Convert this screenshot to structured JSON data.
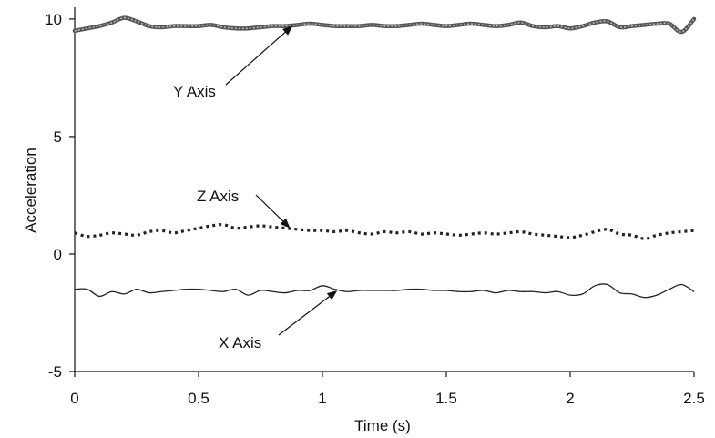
{
  "chart_data": {
    "type": "line",
    "xlabel": "Time (s)",
    "ylabel": "Acceleration",
    "xlim": [
      0,
      2.5
    ],
    "ylim": [
      -5,
      10.5
    ],
    "xticks": [
      0,
      0.5,
      1,
      1.5,
      2,
      2.5
    ],
    "xtick_labels": [
      "0",
      "0.5",
      "1",
      "1.5",
      "2",
      "2.5"
    ],
    "yticks": [
      -5,
      0,
      5,
      10
    ],
    "ytick_labels": [
      "-5",
      "0",
      "5",
      "10"
    ],
    "grid": false,
    "legend": "none",
    "series": [
      {
        "key": "y",
        "style": "thick",
        "color": "#555555",
        "x": [
          0,
          0.05,
          0.1,
          0.15,
          0.2,
          0.25,
          0.3,
          0.35,
          0.4,
          0.45,
          0.5,
          0.55,
          0.6,
          0.65,
          0.7,
          0.75,
          0.8,
          0.85,
          0.9,
          0.95,
          1.0,
          1.05,
          1.1,
          1.15,
          1.2,
          1.25,
          1.3,
          1.35,
          1.4,
          1.45,
          1.5,
          1.55,
          1.6,
          1.65,
          1.7,
          1.75,
          1.8,
          1.85,
          1.9,
          1.95,
          2.0,
          2.05,
          2.1,
          2.15,
          2.2,
          2.25,
          2.3,
          2.35,
          2.4,
          2.45,
          2.5
        ],
        "values": [
          9.5,
          9.6,
          9.7,
          9.85,
          10.05,
          9.9,
          9.7,
          9.65,
          9.7,
          9.7,
          9.7,
          9.75,
          9.65,
          9.6,
          9.6,
          9.65,
          9.7,
          9.7,
          9.75,
          9.8,
          9.75,
          9.7,
          9.7,
          9.7,
          9.75,
          9.7,
          9.7,
          9.75,
          9.8,
          9.75,
          9.7,
          9.75,
          9.8,
          9.75,
          9.7,
          9.75,
          9.85,
          9.7,
          9.65,
          9.7,
          9.6,
          9.7,
          9.85,
          9.9,
          9.65,
          9.7,
          9.75,
          9.8,
          9.8,
          9.45,
          10.0
        ]
      },
      {
        "key": "z",
        "style": "dotted",
        "color": "#222222",
        "x": [
          0,
          0.05,
          0.1,
          0.15,
          0.2,
          0.25,
          0.3,
          0.35,
          0.4,
          0.45,
          0.5,
          0.55,
          0.6,
          0.65,
          0.7,
          0.75,
          0.8,
          0.85,
          0.9,
          0.95,
          1.0,
          1.05,
          1.1,
          1.15,
          1.2,
          1.25,
          1.3,
          1.35,
          1.4,
          1.45,
          1.5,
          1.55,
          1.6,
          1.65,
          1.7,
          1.75,
          1.8,
          1.85,
          1.9,
          1.95,
          2.0,
          2.05,
          2.1,
          2.15,
          2.2,
          2.25,
          2.3,
          2.35,
          2.4,
          2.45,
          2.5
        ],
        "values": [
          0.9,
          0.75,
          0.8,
          0.9,
          0.85,
          0.8,
          0.95,
          1.0,
          0.9,
          1.0,
          1.1,
          1.2,
          1.25,
          1.1,
          1.15,
          1.2,
          1.15,
          1.1,
          1.05,
          1.0,
          1.0,
          0.95,
          1.0,
          0.9,
          0.85,
          0.95,
          0.9,
          0.95,
          0.85,
          0.9,
          0.85,
          0.8,
          0.85,
          0.9,
          0.85,
          0.9,
          0.95,
          0.85,
          0.8,
          0.75,
          0.7,
          0.8,
          0.95,
          1.05,
          0.85,
          0.8,
          0.65,
          0.8,
          0.9,
          0.95,
          1.0
        ]
      },
      {
        "key": "x",
        "style": "thin",
        "color": "#222222",
        "x": [
          0,
          0.05,
          0.1,
          0.15,
          0.2,
          0.25,
          0.3,
          0.35,
          0.4,
          0.45,
          0.5,
          0.55,
          0.6,
          0.65,
          0.7,
          0.75,
          0.8,
          0.85,
          0.9,
          0.95,
          1.0,
          1.05,
          1.1,
          1.15,
          1.2,
          1.25,
          1.3,
          1.35,
          1.4,
          1.45,
          1.5,
          1.55,
          1.6,
          1.65,
          1.7,
          1.75,
          1.8,
          1.85,
          1.9,
          1.95,
          2.0,
          2.05,
          2.1,
          2.15,
          2.2,
          2.25,
          2.3,
          2.35,
          2.4,
          2.45,
          2.5
        ],
        "values": [
          -1.5,
          -1.5,
          -1.8,
          -1.6,
          -1.7,
          -1.5,
          -1.65,
          -1.6,
          -1.55,
          -1.5,
          -1.5,
          -1.55,
          -1.6,
          -1.5,
          -1.75,
          -1.55,
          -1.6,
          -1.65,
          -1.55,
          -1.55,
          -1.35,
          -1.5,
          -1.6,
          -1.55,
          -1.55,
          -1.55,
          -1.55,
          -1.5,
          -1.5,
          -1.55,
          -1.55,
          -1.6,
          -1.6,
          -1.55,
          -1.65,
          -1.55,
          -1.6,
          -1.6,
          -1.65,
          -1.6,
          -1.75,
          -1.7,
          -1.35,
          -1.3,
          -1.65,
          -1.7,
          -1.85,
          -1.75,
          -1.5,
          -1.3,
          -1.6
        ]
      }
    ],
    "annotations": [
      {
        "key": "y_label",
        "text": "Y Axis",
        "target_x": 0.88,
        "target_y": 9.72
      },
      {
        "key": "z_label",
        "text": "Z Axis",
        "target_x": 0.87,
        "target_y": 1.1
      },
      {
        "key": "x_label",
        "text": "X Axis",
        "target_x": 1.06,
        "target_y": -1.55
      }
    ]
  }
}
